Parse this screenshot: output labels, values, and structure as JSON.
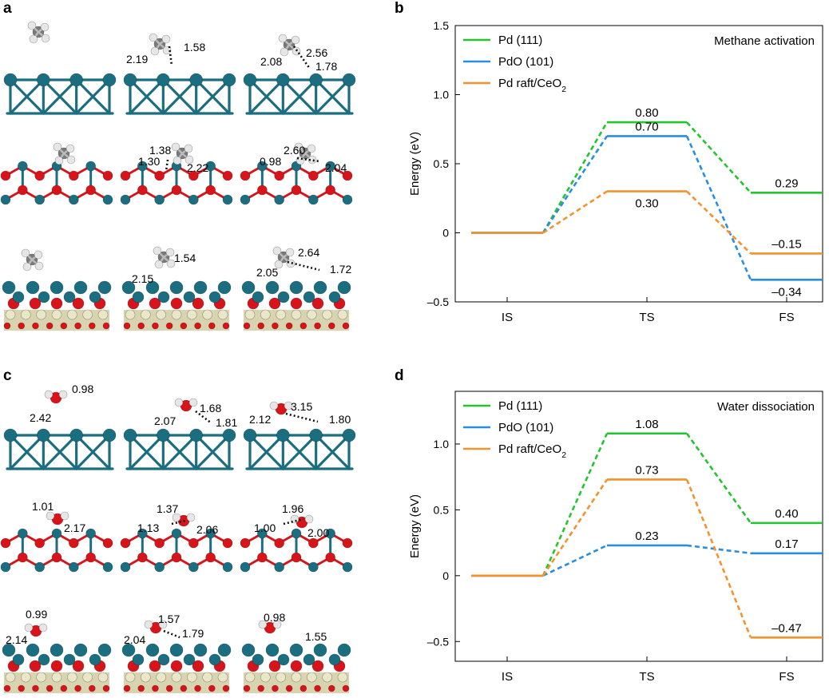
{
  "panels": {
    "a": "a",
    "b": "b",
    "c": "c",
    "d": "d"
  },
  "structure_labels": {
    "a": [
      [
        "1.58",
        "2.19"
      ],
      [
        "2.08",
        "2.56",
        "1.78"
      ],
      [
        "1.38",
        "1.30",
        "2.22"
      ],
      [
        "2.60",
        "0.98",
        "2.04"
      ],
      [
        "1.54",
        "2.15"
      ],
      [
        "2.64",
        "2.05",
        "1.72"
      ]
    ],
    "c": [
      [
        "0.98",
        "2.42"
      ],
      [
        "1.68",
        "2.07",
        "1.81"
      ],
      [
        "3.15",
        "2.12",
        "1.80"
      ],
      [
        "1.01",
        "2.17"
      ],
      [
        "1.37",
        "1.13",
        "2.06"
      ],
      [
        "1.96",
        "1.00",
        "2.00"
      ],
      [
        "0.99",
        "2.14"
      ],
      [
        "1.57",
        "2.04",
        "1.79"
      ],
      [
        "0.98",
        "1.55"
      ]
    ]
  },
  "colors": {
    "green": "#22c52e",
    "blue": "#2a8ee0",
    "orange": "#f3922f",
    "pd": "#1a6e80",
    "o": "#d8141a",
    "h": "#e6e6e6",
    "c": "#7a7a7a",
    "ce": "#eae6c8"
  },
  "chart_data": [
    {
      "type": "line",
      "panel": "b",
      "annotation": "Methane activation",
      "ylabel": "Energy (eV)",
      "categories": [
        "IS",
        "TS",
        "FS"
      ],
      "ylim": [
        -0.5,
        1.5
      ],
      "yticks": [
        1.5,
        1.0,
        0.5,
        0,
        -0.5
      ],
      "ytick_labels": [
        "1.5",
        "1.0",
        "0.5",
        "0",
        "–0.5"
      ],
      "legend_position": "top-left",
      "series": [
        {
          "name": "Pd (111)",
          "color": "#22c52e",
          "values": [
            0,
            0.8,
            0.29
          ],
          "labels": [
            "",
            "0.80",
            "0.29"
          ],
          "label_pos": [
            "",
            "above",
            "above"
          ]
        },
        {
          "name": "PdO (101)",
          "color": "#2a8ee0",
          "values": [
            0,
            0.7,
            -0.34
          ],
          "labels": [
            "",
            "0.70",
            "–0.34"
          ],
          "label_pos": [
            "",
            "above",
            "below"
          ]
        },
        {
          "name": "Pd raft/CeO2",
          "color": "#f3922f",
          "values": [
            0,
            0.3,
            -0.15
          ],
          "labels": [
            "",
            "0.30",
            "–0.15"
          ],
          "label_pos": [
            "",
            "below",
            "above"
          ]
        }
      ]
    },
    {
      "type": "line",
      "panel": "d",
      "annotation": "Water dissociation",
      "ylabel": "Energy (eV)",
      "categories": [
        "IS",
        "TS",
        "FS"
      ],
      "ylim": [
        -0.65,
        1.4
      ],
      "yticks": [
        1.0,
        0.5,
        0,
        -0.5
      ],
      "ytick_labels": [
        "1.0",
        "0.5",
        "0",
        "–0.5"
      ],
      "legend_position": "top-left",
      "series": [
        {
          "name": "Pd (111)",
          "color": "#22c52e",
          "values": [
            0,
            1.08,
            0.4
          ],
          "labels": [
            "",
            "1.08",
            "0.40"
          ],
          "label_pos": [
            "",
            "above",
            "above"
          ]
        },
        {
          "name": "PdO (101)",
          "color": "#2a8ee0",
          "values": [
            0,
            0.23,
            0.17
          ],
          "labels": [
            "",
            "0.23",
            "0.17"
          ],
          "label_pos": [
            "",
            "above",
            "above"
          ]
        },
        {
          "name": "Pd raft/CeO2",
          "color": "#f3922f",
          "values": [
            0,
            0.73,
            -0.47
          ],
          "labels": [
            "",
            "0.73",
            "–0.47"
          ],
          "label_pos": [
            "",
            "above",
            "above"
          ]
        }
      ]
    }
  ]
}
